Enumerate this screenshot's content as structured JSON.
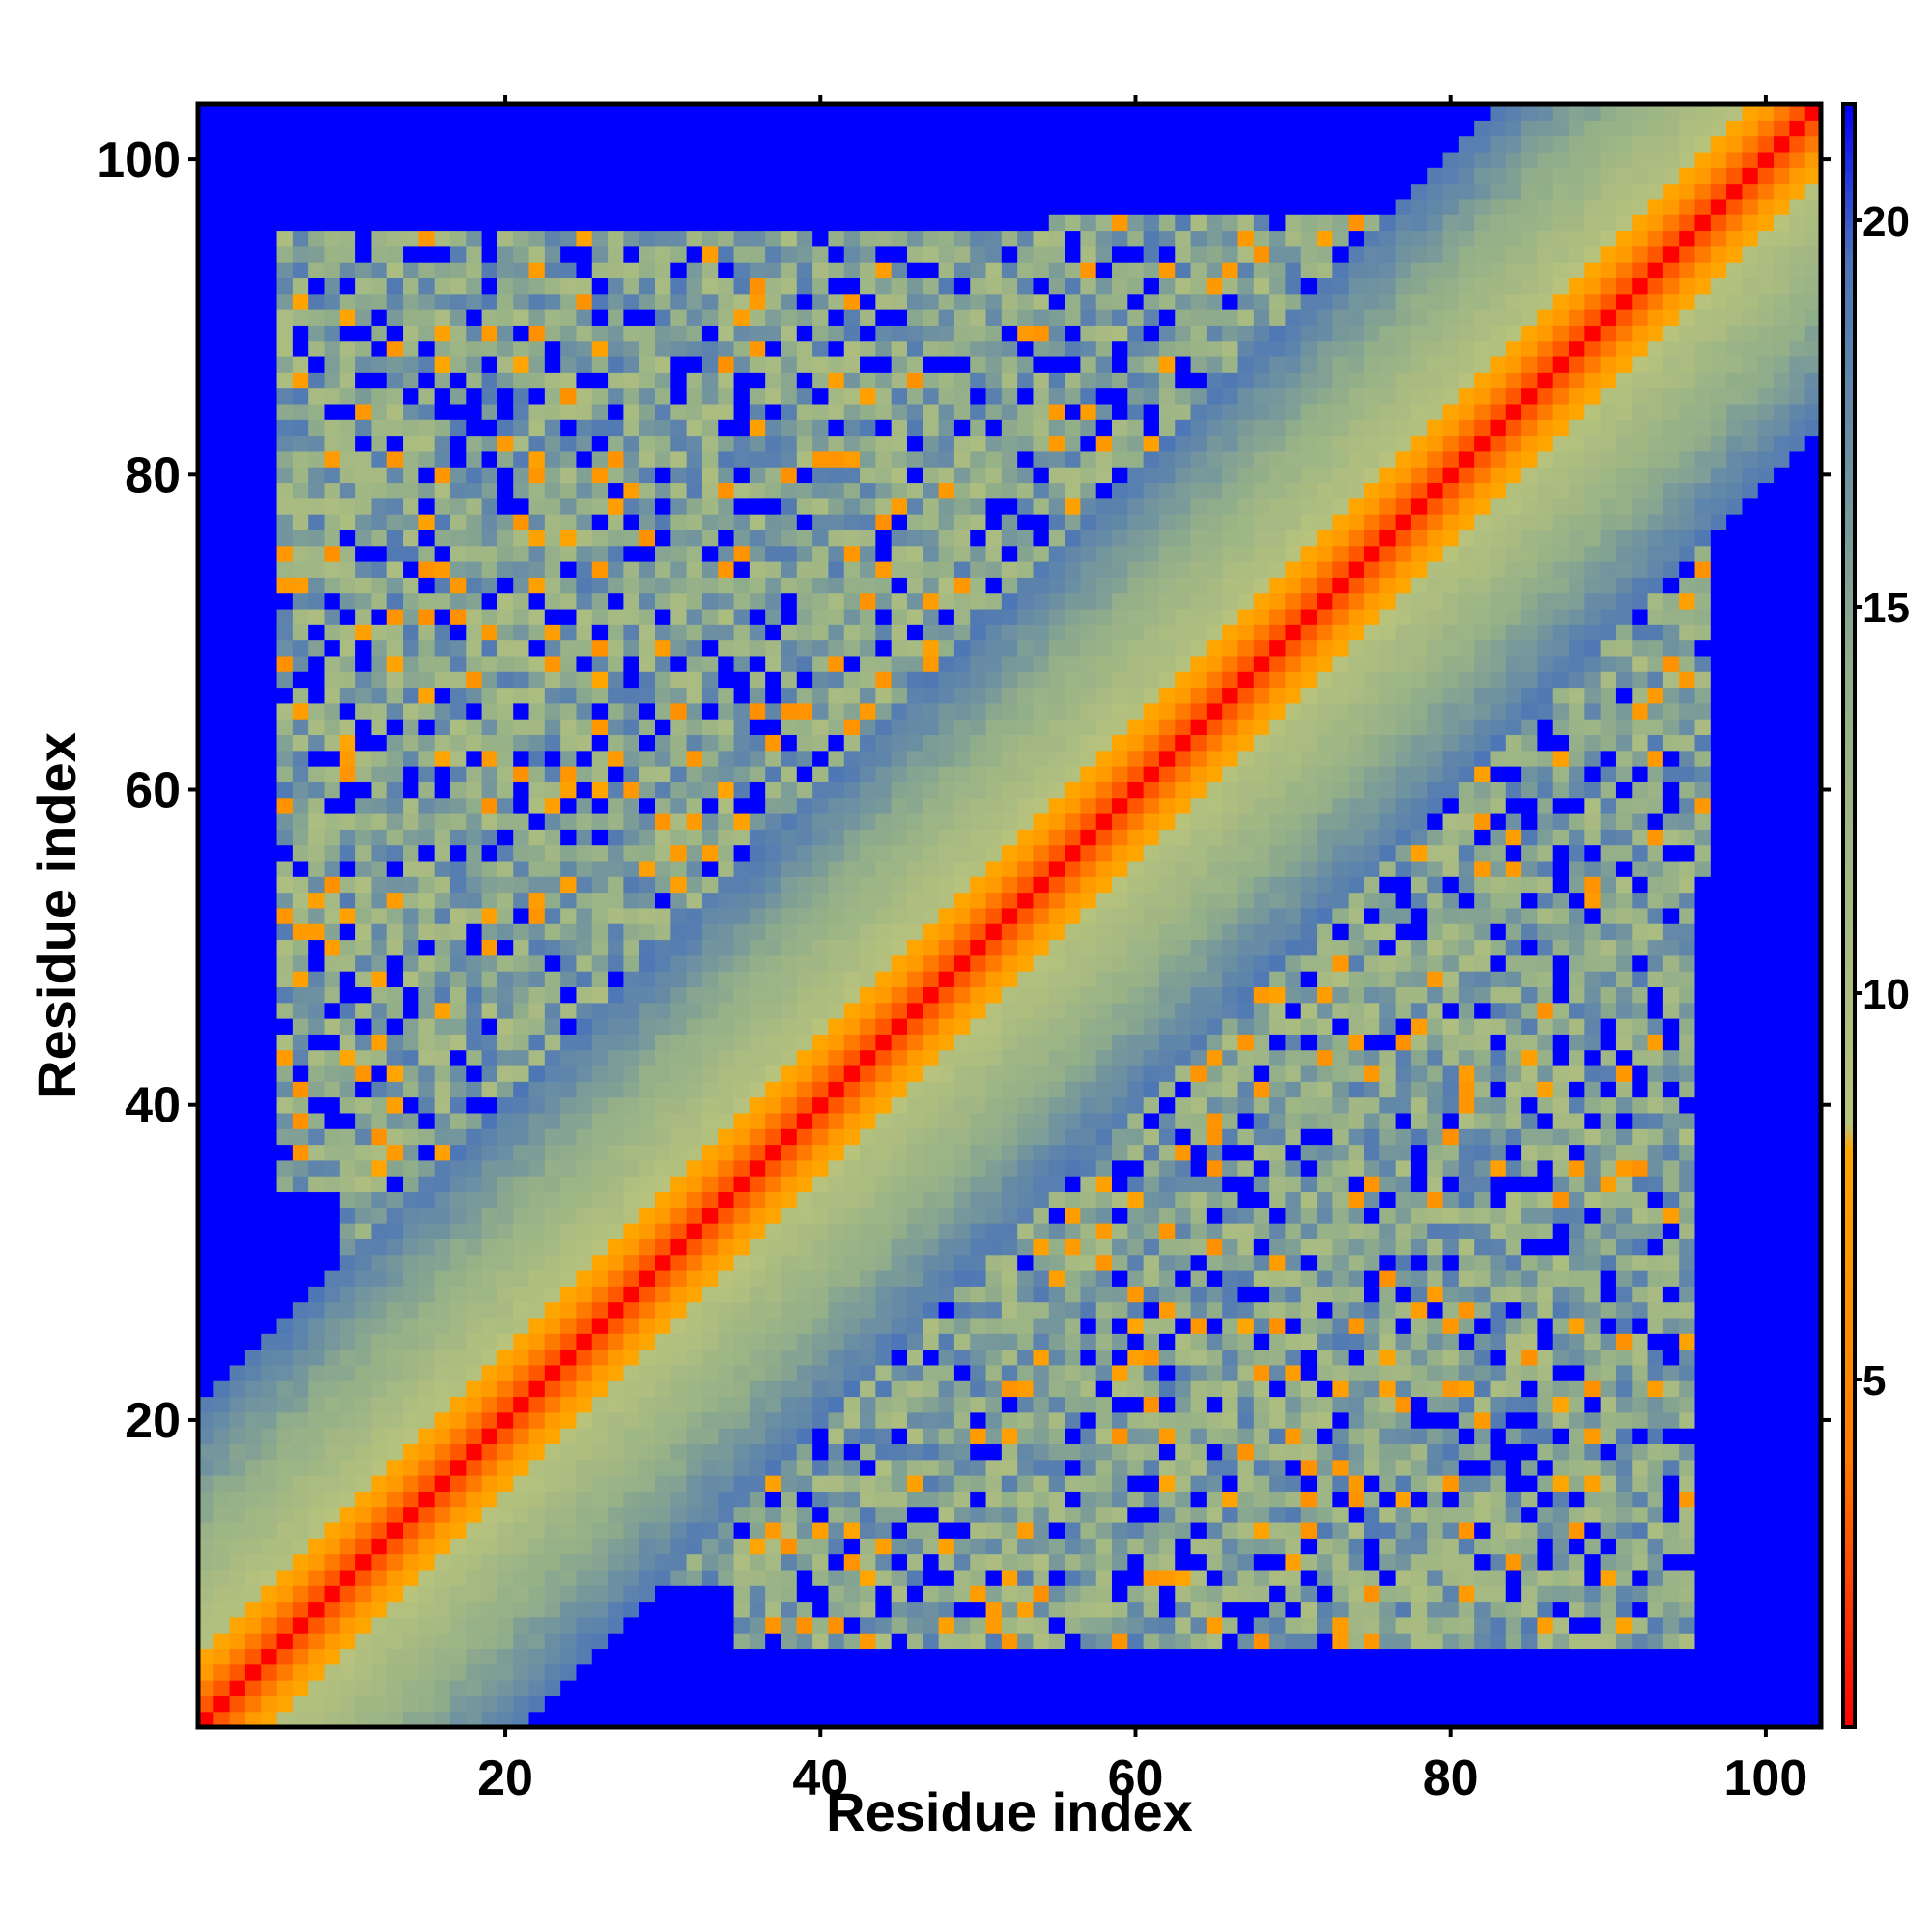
{
  "chart_data": {
    "type": "heatmap",
    "title": "",
    "xlabel": "Residue index",
    "ylabel": "Residue index",
    "n_residues": 103,
    "xlim": [
      1,
      103
    ],
    "ylim": [
      1,
      103
    ],
    "x_ticks": [
      20,
      40,
      60,
      80,
      100
    ],
    "y_ticks": [
      20,
      40,
      60,
      80,
      100
    ],
    "colorbar": {
      "ticks": [
        5,
        10,
        15,
        20
      ],
      "range": [
        0.5,
        21.5
      ],
      "stops": [
        {
          "value": 0.5,
          "color": "#ff0000"
        },
        {
          "value": 4.0,
          "color": "#ff7a00"
        },
        {
          "value": 8.0,
          "color": "#ffa500"
        },
        {
          "value": 8.3,
          "color": "#b9c47c"
        },
        {
          "value": 14.0,
          "color": "#93af89"
        },
        {
          "value": 19.5,
          "color": "#4a74b8"
        },
        {
          "value": 21.5,
          "color": "#0000ff"
        }
      ]
    },
    "background_color": "#0000ff",
    "diagonal_band": "distance rises from 0 on the diagonal to about 20 at a separation of about 20 residues",
    "contact_blocks": [
      {
        "x": [
          6,
          32
        ],
        "y": [
          35,
          95
        ]
      },
      {
        "x": [
          30,
          55
        ],
        "y": [
          55,
          95
        ]
      },
      {
        "x": [
          55,
          80
        ],
        "y": [
          62,
          96
        ]
      },
      {
        "x": [
          10,
          40
        ],
        "y": [
          8,
          50
        ]
      },
      {
        "x": [
          33,
          64
        ],
        "y": [
          18,
          57
        ]
      },
      {
        "x": [
          38,
          70
        ],
        "y": [
          48,
          85
        ]
      },
      {
        "x": [
          58,
          100
        ],
        "y": [
          28,
          56
        ]
      },
      {
        "x": [
          68,
          96
        ],
        "y": [
          5,
          42
        ]
      },
      {
        "x": [
          74,
          98
        ],
        "y": [
          34,
          72
        ]
      }
    ]
  }
}
